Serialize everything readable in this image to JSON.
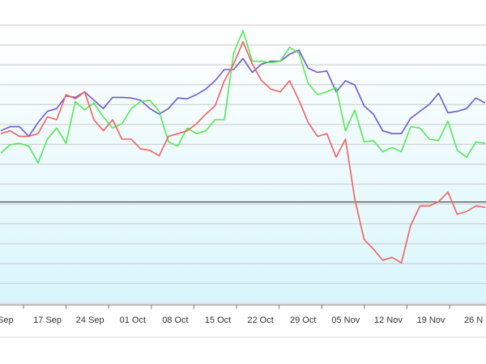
{
  "chart_data": {
    "type": "line",
    "title": "",
    "xlabel": "",
    "ylabel": "",
    "tick_labels": [
      "Sep",
      "17 Sep",
      "24 Sep",
      "01 Oct",
      "08 Oct",
      "15 Oct",
      "22 Oct",
      "29 Oct",
      "05 Nov",
      "12 Nov",
      "19 Nov",
      "26 N"
    ],
    "ylim": [
      0,
      100
    ],
    "reference_line": 36.4,
    "grid": true,
    "legend": "none",
    "series": [
      {
        "color": "#6a5acd",
        "values": [
          62,
          63.5,
          63.5,
          60,
          65,
          69,
          70,
          74.5,
          74,
          76,
          73,
          70,
          74,
          74,
          73.8,
          73,
          70,
          68,
          70,
          73.8,
          73.5,
          75,
          77,
          80,
          84,
          84,
          88,
          83,
          86,
          87,
          87,
          89.5,
          91,
          84.5,
          83,
          83.5,
          76,
          80,
          78.5,
          71,
          68,
          62,
          61,
          61,
          66.5,
          69,
          71.5,
          75.5,
          68.5,
          69,
          70,
          73.8,
          72
        ]
      },
      {
        "color": "#55e855",
        "values": [
          54,
          57,
          57.5,
          56.5,
          50.5,
          59,
          63,
          57.5,
          72.5,
          69.5,
          72,
          67,
          63,
          64.5,
          70,
          72.5,
          73,
          69,
          58,
          56.5,
          63,
          61,
          62,
          66,
          66,
          90,
          98,
          87,
          87,
          86.5,
          87,
          92,
          90,
          79,
          75,
          76,
          77.5,
          62,
          69.5,
          58,
          58.5,
          54.5,
          56,
          54.5,
          63.5,
          63,
          59,
          58.5,
          65.5,
          55,
          52.5,
          58,
          57.5
        ]
      },
      {
        "color": "#f26060",
        "values": [
          61,
          62,
          60,
          60,
          61,
          67,
          66,
          75,
          73.5,
          76,
          66,
          62,
          66,
          59,
          59,
          55.5,
          55,
          53,
          60,
          61,
          62,
          64.5,
          68,
          71,
          80,
          86,
          94,
          86,
          80,
          77,
          76,
          80,
          73,
          65,
          60,
          61,
          52.5,
          59,
          37.5,
          23,
          19.5,
          15.5,
          16.5,
          14.5,
          28,
          35,
          35,
          36.5,
          40,
          32,
          33,
          35,
          34.5
        ]
      }
    ]
  }
}
